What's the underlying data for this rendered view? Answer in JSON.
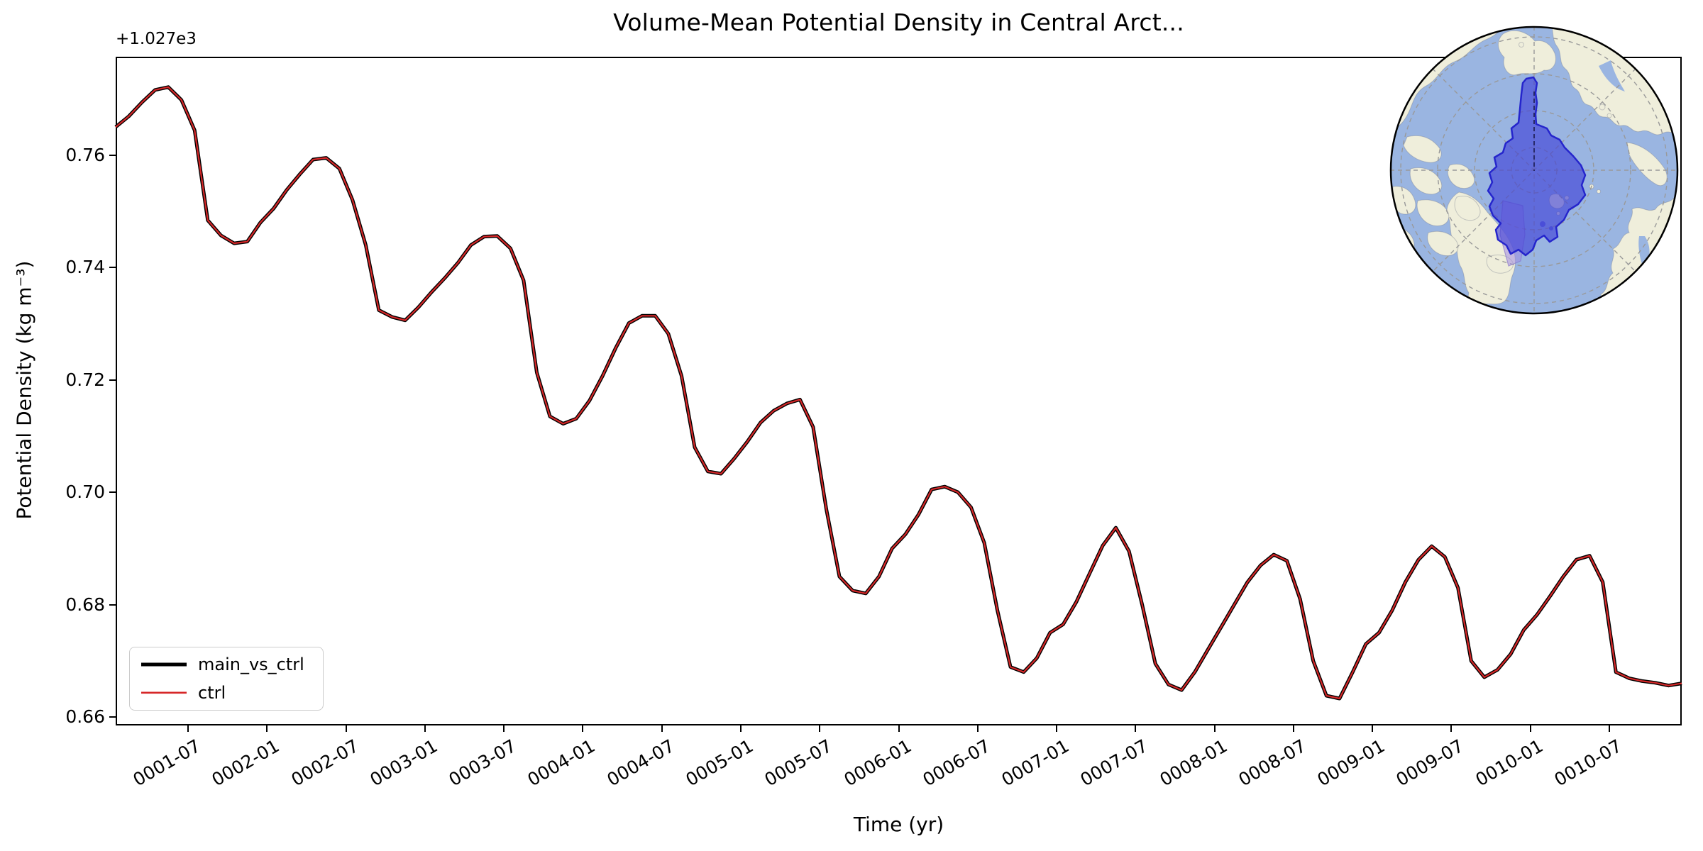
{
  "figure": {
    "background": "#ffffff"
  },
  "chart_data": {
    "type": "line",
    "title": "Volume-Mean Potential Density in Central Arct...",
    "xlabel": "Time (yr)",
    "ylabel": "Potential Density (kg m⁻³)",
    "y_offset_text": "+1.027e3",
    "y_offset_value": 1027,
    "ylim": [
      0.6585,
      0.7775
    ],
    "n_points": 120,
    "x_start_label": "0001-01",
    "x_end_label": "0010-12",
    "grid": false,
    "yticks": {
      "values": [
        0.66,
        0.68,
        0.7,
        0.72,
        0.74,
        0.76
      ],
      "labels": [
        "0.66",
        "0.68",
        "0.70",
        "0.72",
        "0.74",
        "0.76"
      ]
    },
    "xticks": {
      "months": [
        6,
        12,
        18,
        24,
        30,
        36,
        42,
        48,
        54,
        60,
        66,
        72,
        78,
        84,
        90,
        96,
        102,
        108,
        114
      ],
      "labels": [
        "0001-07",
        "0002-01",
        "0002-07",
        "0003-01",
        "0003-07",
        "0004-01",
        "0004-07",
        "0005-01",
        "0005-07",
        "0006-01",
        "0006-07",
        "0007-01",
        "0007-07",
        "0008-01",
        "0008-07",
        "0009-01",
        "0009-07",
        "0010-01",
        "0010-07"
      ]
    },
    "series": [
      {
        "name": "main_vs_ctrl",
        "color": "#000000",
        "linewidth": 5.0
      },
      {
        "name": "ctrl",
        "color": "#d62728",
        "linewidth": 2.2
      }
    ],
    "series_note": "both series overlap exactly; ctrl is drawn on top of main_vs_ctrl",
    "values": [
      0.765,
      0.7669,
      0.7694,
      0.7716,
      0.7721,
      0.7698,
      0.7644,
      0.7484,
      0.7457,
      0.7443,
      0.7446,
      0.748,
      0.7505,
      0.7538,
      0.7566,
      0.7592,
      0.7595,
      0.7576,
      0.752,
      0.744,
      0.7324,
      0.7312,
      0.7306,
      0.7329,
      0.7356,
      0.7381,
      0.7408,
      0.744,
      0.7455,
      0.7456,
      0.7434,
      0.7377,
      0.7213,
      0.7135,
      0.7122,
      0.7131,
      0.7163,
      0.7207,
      0.7257,
      0.7301,
      0.7314,
      0.7314,
      0.7282,
      0.7207,
      0.708,
      0.7037,
      0.7033,
      0.706,
      0.709,
      0.7124,
      0.7145,
      0.7158,
      0.7165,
      0.7116,
      0.697,
      0.685,
      0.6825,
      0.682,
      0.685,
      0.69,
      0.6925,
      0.696,
      0.7005,
      0.701,
      0.7,
      0.6973,
      0.691,
      0.679,
      0.6689,
      0.668,
      0.6705,
      0.675,
      0.6765,
      0.6805,
      0.6855,
      0.6905,
      0.6937,
      0.6895,
      0.68,
      0.6695,
      0.6658,
      0.6648,
      0.668,
      0.672,
      0.676,
      0.68,
      0.684,
      0.687,
      0.6889,
      0.6878,
      0.681,
      0.67,
      0.6638,
      0.6633,
      0.668,
      0.673,
      0.675,
      0.679,
      0.684,
      0.688,
      0.6904,
      0.6885,
      0.683,
      0.67,
      0.6671,
      0.6684,
      0.6712,
      0.6755,
      0.6782,
      0.6815,
      0.685,
      0.688,
      0.6887,
      0.684,
      0.668,
      0.6669,
      0.6664,
      0.6661,
      0.6656,
      0.666
    ],
    "legend": {
      "position": "lower left",
      "entries": [
        "main_vs_ctrl",
        "ctrl"
      ]
    }
  },
  "inset_map": {
    "name": "north-polar-stereographic-inset",
    "ocean_color": "#9ab5e1",
    "land_color": "#efeedb",
    "region_fill": "rgba(62,62,215,0.62)",
    "region_border": "#2525cc",
    "secondary_region_fill": "rgba(160,140,225,0.55)",
    "secondary_region_border": "rgba(130,110,200,0.6)",
    "graticule_color": "#999999",
    "border_color": "#000000"
  }
}
